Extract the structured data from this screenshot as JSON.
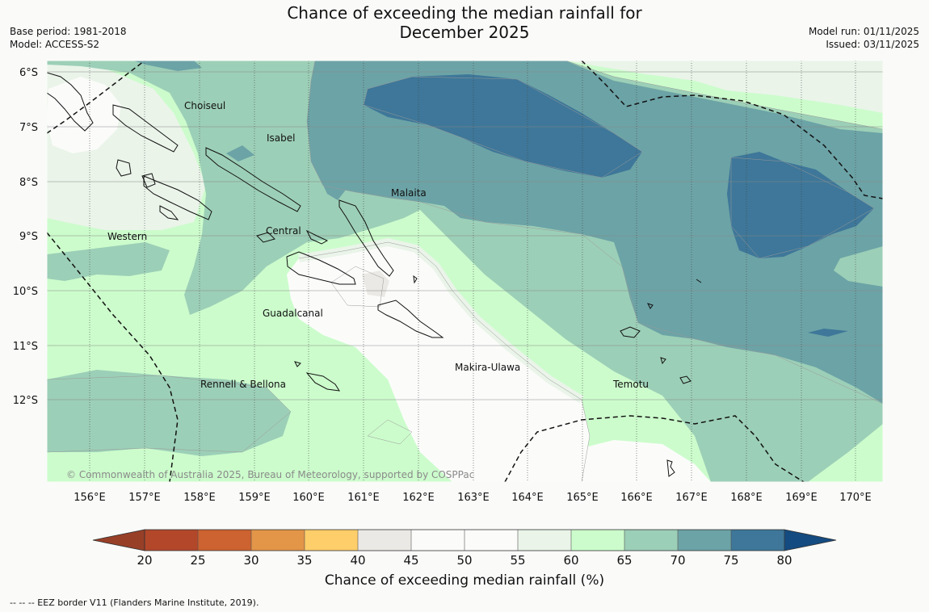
{
  "title_line1": "Chance of exceeding the median rainfall for",
  "title_line2": "December 2025",
  "base_period": "Base period: 1981-2018",
  "model": "Model: ACCESS-S2",
  "model_run": "Model run: 01/11/2025",
  "issued": "Issued: 03/11/2025",
  "lat_labels": [
    "6°S",
    "7°S",
    "8°S",
    "9°S",
    "10°S",
    "11°S",
    "12°S"
  ],
  "lon_labels": [
    "156°E",
    "157°E",
    "158°E",
    "159°E",
    "160°E",
    "161°E",
    "162°E",
    "163°E",
    "164°E",
    "165°E",
    "166°E",
    "167°E",
    "168°E",
    "169°E",
    "170°E"
  ],
  "regions": [
    "Choiseul",
    "Isabel",
    "Malaita",
    "Central",
    "Western",
    "Guadalcanal",
    "Makira-Ulawa",
    "Rennell & Bellona",
    "Temotu"
  ],
  "copyright": "© Commonwealth of Australia 2025, Bureau of Meteorology, supported by COSPPac",
  "colorbar": {
    "ticks": [
      "20",
      "25",
      "30",
      "35",
      "40",
      "45",
      "50",
      "55",
      "60",
      "65",
      "70",
      "75",
      "80"
    ],
    "colors": [
      "#b2472a",
      "#cc6330",
      "#e39548",
      "#fece6a",
      "#ebe9e5",
      "#fbfcfa",
      "#fbfcfa",
      "#eaf4e9",
      "#ccfccc",
      "#9ccfb7",
      "#6ca3a6",
      "#3e7799"
    ],
    "under_color": "#983f27",
    "over_color": "#144b80",
    "label": "Chance of exceeding median rainfall (%)"
  },
  "footnote": "--  --  -- EEZ border V11 (Flanders Marine Institute, 2019).",
  "palette": {
    "c45_55": "#fbfcfa",
    "c55_60": "#eaf4e9",
    "c60_65": "#ccfccc",
    "c65_70": "#9ccfb7",
    "c70_75": "#6ca3a6",
    "c75_80": "#3e7799",
    "c40_45": "#ebe9e5"
  }
}
